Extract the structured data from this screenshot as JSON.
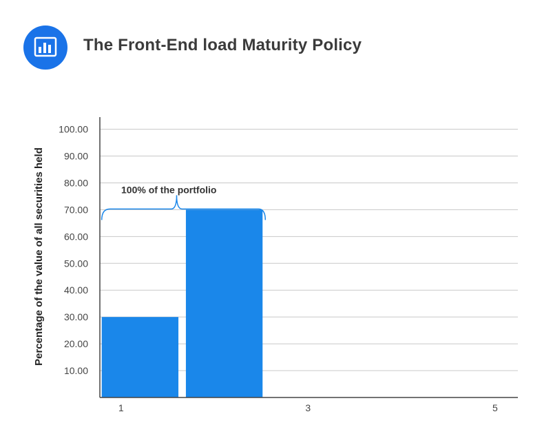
{
  "header": {
    "title": "The Front-End load Maturity Policy",
    "logo_icon": "bar-chart-icon",
    "accent_color": "#1a73e8"
  },
  "chart_data": {
    "type": "bar",
    "title": "The Front-End load Maturity Policy",
    "xlabel": "",
    "ylabel": "Percentage of the value of all securities held",
    "x_tick_labels": [
      "1",
      "3",
      "5"
    ],
    "x_tick_positions": [
      1,
      3,
      5
    ],
    "xlim": [
      0.98,
      5.45
    ],
    "ylim": [
      0,
      104
    ],
    "y_ticks": [
      10,
      20,
      30,
      40,
      50,
      60,
      70,
      80,
      90,
      100
    ],
    "y_tick_labels": [
      "10.00",
      "20.00",
      "30.00",
      "40.00",
      "50.00",
      "60.00",
      "70.00",
      "80.00",
      "90.00",
      "100.00"
    ],
    "bars": [
      {
        "x_start": 1.0,
        "x_end": 1.82,
        "value": 30
      },
      {
        "x_start": 1.9,
        "x_end": 2.72,
        "value": 70
      }
    ],
    "bar_color": "#1a87ea",
    "grid": true,
    "annotation": {
      "text": "100% of the portfolio",
      "brace_x_start": 1.0,
      "brace_x_end": 2.72,
      "brace_value": 70
    }
  }
}
